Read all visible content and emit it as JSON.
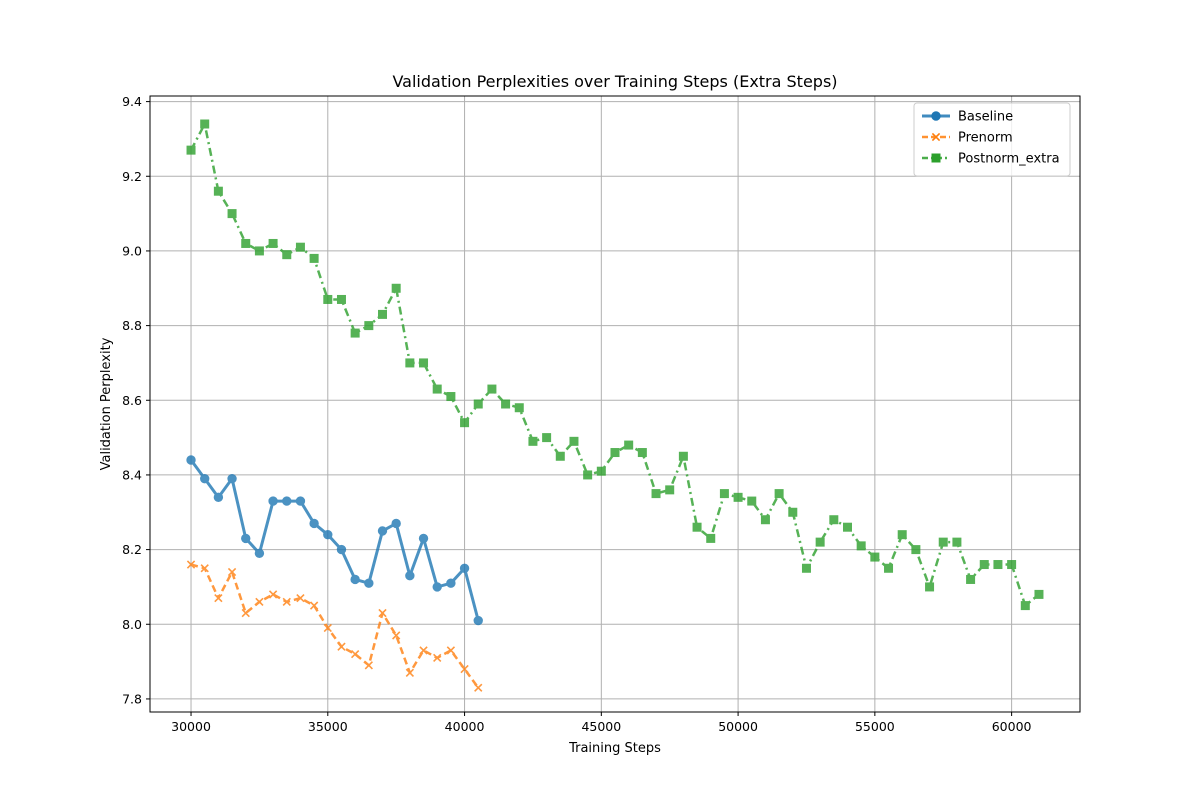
{
  "chart_data": {
    "type": "line",
    "title": "Validation Perplexities over Training Steps (Extra Steps)",
    "xlabel": "Training Steps",
    "ylabel": "Validation Perplexity",
    "xlim": [
      28500,
      62500
    ],
    "ylim": [
      7.765,
      9.415
    ],
    "xticks": [
      30000,
      35000,
      40000,
      45000,
      50000,
      55000,
      60000
    ],
    "yticks": [
      7.8,
      8.0,
      8.2,
      8.4,
      8.6,
      8.8,
      9.0,
      9.2,
      9.4
    ],
    "xtick_labels": [
      "30000",
      "35000",
      "40000",
      "45000",
      "50000",
      "55000",
      "60000"
    ],
    "ytick_labels": [
      "7.8",
      "8.0",
      "8.2",
      "8.4",
      "8.6",
      "8.8",
      "9.0",
      "9.2",
      "9.4"
    ],
    "grid": true,
    "legend_position": "top-right",
    "series": [
      {
        "name": "Baseline",
        "color": "#1f77b4",
        "line_style": "solid",
        "marker": "circle",
        "x": [
          30000,
          30500,
          31000,
          31500,
          32000,
          32500,
          33000,
          33500,
          34000,
          34500,
          35000,
          35500,
          36000,
          36500,
          37000,
          37500,
          38000,
          38500,
          39000,
          39500,
          40000,
          40500
        ],
        "y": [
          8.44,
          8.39,
          8.34,
          8.39,
          8.23,
          8.19,
          8.33,
          8.33,
          8.33,
          8.27,
          8.24,
          8.2,
          8.12,
          8.11,
          8.25,
          8.27,
          8.13,
          8.23,
          8.1,
          8.11,
          8.15,
          8.01
        ]
      },
      {
        "name": "Prenorm",
        "color": "#ff7f0e",
        "line_style": "dashed",
        "marker": "x",
        "x": [
          30000,
          30500,
          31000,
          31500,
          32000,
          32500,
          33000,
          33500,
          34000,
          34500,
          35000,
          35500,
          36000,
          36500,
          37000,
          37500,
          38000,
          38500,
          39000,
          39500,
          40000,
          40500
        ],
        "y": [
          8.16,
          8.15,
          8.07,
          8.14,
          8.03,
          8.06,
          8.08,
          8.06,
          8.07,
          8.05,
          7.99,
          7.94,
          7.92,
          7.89,
          8.03,
          7.97,
          7.87,
          7.93,
          7.91,
          7.93,
          7.88,
          7.83
        ]
      },
      {
        "name": "Postnorm_extra",
        "color": "#2ca02c",
        "line_style": "dashdot",
        "marker": "square",
        "x": [
          30000,
          30500,
          31000,
          31500,
          32000,
          32500,
          33000,
          33500,
          34000,
          34500,
          35000,
          35500,
          36000,
          36500,
          37000,
          37500,
          38000,
          38500,
          39000,
          39500,
          40000,
          40500,
          41000,
          41500,
          42000,
          42500,
          43000,
          43500,
          44000,
          44500,
          45000,
          45500,
          46000,
          46500,
          47000,
          47500,
          48000,
          48500,
          49000,
          49500,
          50000,
          50500,
          51000,
          51500,
          52000,
          52500,
          53000,
          53500,
          54000,
          54500,
          55000,
          55500,
          56000,
          56500,
          57000,
          57500,
          58000,
          58500,
          59000,
          59500,
          60000,
          60500,
          61000
        ],
        "y": [
          9.27,
          9.34,
          9.16,
          9.1,
          9.02,
          9.0,
          9.02,
          8.99,
          9.01,
          8.98,
          8.87,
          8.87,
          8.78,
          8.8,
          8.83,
          8.9,
          8.7,
          8.7,
          8.63,
          8.61,
          8.54,
          8.59,
          8.63,
          8.59,
          8.58,
          8.49,
          8.5,
          8.45,
          8.49,
          8.4,
          8.41,
          8.46,
          8.48,
          8.46,
          8.35,
          8.36,
          8.45,
          8.26,
          8.23,
          8.35,
          8.34,
          8.33,
          8.28,
          8.35,
          8.3,
          8.15,
          8.22,
          8.28,
          8.26,
          8.21,
          8.18,
          8.15,
          8.24,
          8.2,
          8.1,
          8.22,
          8.22,
          8.12,
          8.16,
          8.16,
          8.16,
          8.05,
          8.08
        ]
      }
    ]
  }
}
